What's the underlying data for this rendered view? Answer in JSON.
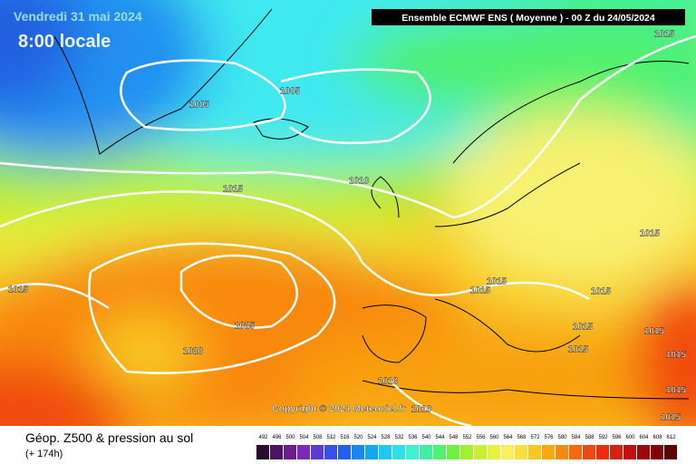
{
  "map": {
    "date": "Vendredi 31 mai 2024",
    "time": "8:00 locale",
    "header": "Ensemble ECMWF ENS  ( Moyenne )  -  00 Z du 24/05/2024",
    "copyright": "Copyright © 2024 Meteociel.fr",
    "isobar_labels": [
      "1015",
      "1005",
      "1005",
      "1010",
      "1015",
      "1015",
      "1015",
      "1015",
      "1015",
      "1015",
      "1025",
      "1020",
      "1015",
      "1015",
      "1015",
      "1015",
      "1010",
      "1010",
      "1015",
      "1015"
    ]
  },
  "footer": {
    "title": "Géop. Z500 & pression au sol",
    "lead": "(+ 174h)"
  },
  "legend": {
    "ticks": [
      492,
      496,
      500,
      504,
      508,
      512,
      516,
      520,
      524,
      528,
      532,
      536,
      540,
      544,
      548,
      552,
      556,
      560,
      564,
      568,
      572,
      576,
      580,
      584,
      588,
      592,
      596,
      600,
      604,
      608,
      612
    ],
    "colors": [
      "#2a0a2e",
      "#4a1460",
      "#6a1e8e",
      "#7a2ab8",
      "#5a3ad8",
      "#3a4ee8",
      "#2060f0",
      "#1888f0",
      "#10a8f0",
      "#20c8f0",
      "#30e0e8",
      "#40f0d0",
      "#40f0a0",
      "#50f070",
      "#70f040",
      "#a0f030",
      "#c8f030",
      "#e8f040",
      "#f8f060",
      "#f8e040",
      "#f8c820",
      "#f8a810",
      "#f88810",
      "#f86810",
      "#f04810",
      "#e83010",
      "#d82010",
      "#c01010",
      "#a00808",
      "#800404",
      "#600000"
    ]
  }
}
